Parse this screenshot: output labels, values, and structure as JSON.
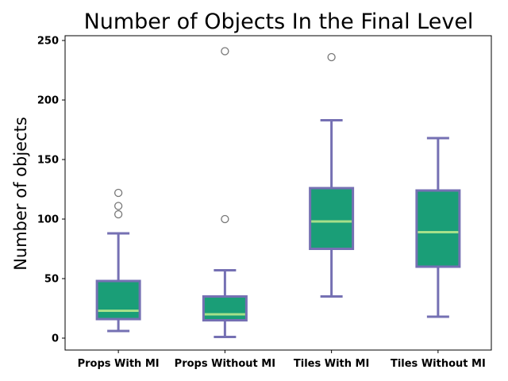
{
  "chart_data": {
    "type": "boxplot",
    "title": "Number of Objects In the Final Level",
    "xlabel": "",
    "ylabel": "Number of objects",
    "ylim": [
      -10,
      254
    ],
    "yticks": [
      0,
      50,
      100,
      150,
      200,
      250
    ],
    "grid": false,
    "categories": [
      "Props With MI",
      "Props Without MI",
      "Tiles With MI",
      "Tiles Without MI"
    ],
    "boxes": [
      {
        "category": "Props With MI",
        "whisker_low": 6,
        "q1": 16,
        "median": 23,
        "q3": 48,
        "whisker_high": 88,
        "outliers": [
          104,
          111,
          122
        ]
      },
      {
        "category": "Props Without MI",
        "whisker_low": 1,
        "q1": 15,
        "median": 20,
        "q3": 35,
        "whisker_high": 57,
        "outliers": [
          100,
          241
        ]
      },
      {
        "category": "Tiles With MI",
        "whisker_low": 35,
        "q1": 75,
        "median": 98,
        "q3": 126,
        "whisker_high": 183,
        "outliers": [
          236
        ]
      },
      {
        "category": "Tiles Without MI",
        "whisker_low": 18,
        "q1": 60,
        "median": 89,
        "q3": 124,
        "whisker_high": 168,
        "outliers": []
      }
    ],
    "colors": {
      "box_fill": "#1a9e77",
      "box_edge": "#7570b3",
      "whisker": "#7570b3",
      "median": "#a6e08a",
      "outlier_edge": "#777777"
    }
  }
}
